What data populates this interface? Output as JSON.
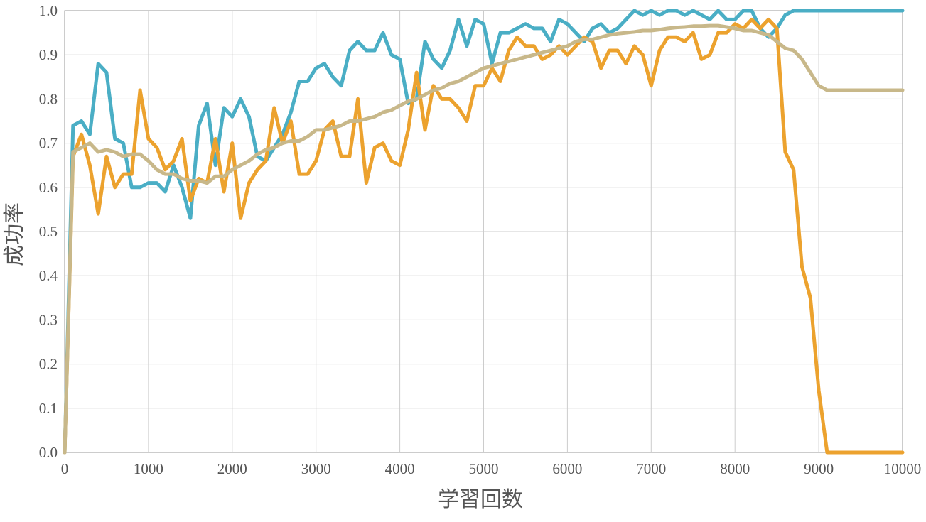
{
  "chart_data": {
    "type": "line",
    "title": "",
    "xlabel": "学習回数",
    "ylabel": "成功率",
    "xlim": [
      0,
      10000
    ],
    "ylim": [
      0,
      1
    ],
    "grid": true,
    "legend": "none",
    "x_ticks": [
      "0",
      "1000",
      "2000",
      "3000",
      "4000",
      "5000",
      "6000",
      "7000",
      "8000",
      "9000",
      "10000"
    ],
    "y_ticks": [
      "0.0",
      "0.1",
      "0.2",
      "0.3",
      "0.4",
      "0.5",
      "0.6",
      "0.7",
      "0.8",
      "0.9",
      "1.0"
    ],
    "x": [
      0,
      100,
      200,
      300,
      400,
      500,
      600,
      700,
      800,
      900,
      1000,
      1100,
      1200,
      1300,
      1400,
      1500,
      1600,
      1700,
      1800,
      1900,
      2000,
      2100,
      2200,
      2300,
      2400,
      2500,
      2600,
      2700,
      2800,
      2900,
      3000,
      3100,
      3200,
      3300,
      3400,
      3500,
      3600,
      3700,
      3800,
      3900,
      4000,
      4100,
      4200,
      4300,
      4400,
      4500,
      4600,
      4700,
      4800,
      4900,
      5000,
      5100,
      5200,
      5300,
      5400,
      5500,
      5600,
      5700,
      5800,
      5900,
      6000,
      6100,
      6200,
      6300,
      6400,
      6500,
      6600,
      6700,
      6800,
      6900,
      7000,
      7100,
      7200,
      7300,
      7400,
      7500,
      7600,
      7700,
      7800,
      7900,
      8000,
      8100,
      8200,
      8300,
      8400,
      8500,
      8600,
      8700,
      8800,
      8900,
      9000,
      9100,
      9200,
      9300,
      9400,
      9500,
      9600,
      9700,
      9800,
      9900,
      10000
    ],
    "series": [
      {
        "color": "#4aaec5",
        "values": [
          0,
          0.74,
          0.75,
          0.72,
          0.88,
          0.86,
          0.71,
          0.7,
          0.6,
          0.6,
          0.61,
          0.61,
          0.59,
          0.65,
          0.6,
          0.53,
          0.74,
          0.79,
          0.65,
          0.78,
          0.76,
          0.8,
          0.76,
          0.67,
          0.66,
          0.69,
          0.72,
          0.77,
          0.84,
          0.84,
          0.87,
          0.88,
          0.85,
          0.83,
          0.91,
          0.93,
          0.91,
          0.91,
          0.95,
          0.9,
          0.89,
          0.79,
          0.8,
          0.93,
          0.89,
          0.87,
          0.91,
          0.98,
          0.92,
          0.98,
          0.97,
          0.88,
          0.95,
          0.95,
          0.96,
          0.97,
          0.96,
          0.96,
          0.93,
          0.98,
          0.97,
          0.95,
          0.93,
          0.96,
          0.97,
          0.95,
          0.96,
          0.98,
          1.0,
          0.99,
          1.0,
          0.99,
          1.0,
          1.0,
          0.99,
          1.0,
          0.99,
          0.98,
          1.0,
          0.98,
          0.98,
          1.0,
          1.0,
          0.96,
          0.94,
          0.96,
          0.99,
          1.0,
          1.0,
          1.0,
          1.0,
          1.0,
          1.0,
          1.0,
          1.0,
          1.0,
          1.0,
          1.0,
          1.0,
          1.0,
          1.0
        ]
      },
      {
        "color": "#eca22e",
        "values": [
          0,
          0.67,
          0.72,
          0.65,
          0.54,
          0.67,
          0.6,
          0.63,
          0.63,
          0.82,
          0.71,
          0.69,
          0.64,
          0.66,
          0.71,
          0.57,
          0.62,
          0.61,
          0.71,
          0.59,
          0.7,
          0.53,
          0.61,
          0.64,
          0.66,
          0.78,
          0.7,
          0.75,
          0.63,
          0.63,
          0.66,
          0.73,
          0.75,
          0.67,
          0.67,
          0.8,
          0.61,
          0.69,
          0.7,
          0.66,
          0.65,
          0.73,
          0.86,
          0.73,
          0.83,
          0.8,
          0.8,
          0.78,
          0.75,
          0.83,
          0.83,
          0.87,
          0.84,
          0.91,
          0.94,
          0.92,
          0.92,
          0.89,
          0.9,
          0.92,
          0.9,
          0.92,
          0.94,
          0.93,
          0.87,
          0.91,
          0.91,
          0.88,
          0.92,
          0.9,
          0.83,
          0.91,
          0.94,
          0.94,
          0.93,
          0.95,
          0.89,
          0.9,
          0.95,
          0.95,
          0.97,
          0.96,
          0.98,
          0.96,
          0.98,
          0.96,
          0.68,
          0.64,
          0.42,
          0.35,
          0.14,
          0.0,
          0.0,
          0.0,
          0.0,
          0.0,
          0.0,
          0.0,
          0.0,
          0.0,
          0.0
        ]
      },
      {
        "color": "#c8b88a",
        "values": [
          0,
          0.68,
          0.69,
          0.7,
          0.68,
          0.685,
          0.68,
          0.67,
          0.675,
          0.675,
          0.66,
          0.64,
          0.63,
          0.63,
          0.62,
          0.615,
          0.615,
          0.61,
          0.625,
          0.625,
          0.64,
          0.65,
          0.66,
          0.675,
          0.685,
          0.69,
          0.7,
          0.705,
          0.705,
          0.715,
          0.73,
          0.73,
          0.735,
          0.74,
          0.75,
          0.75,
          0.755,
          0.76,
          0.77,
          0.775,
          0.785,
          0.795,
          0.8,
          0.81,
          0.82,
          0.825,
          0.835,
          0.84,
          0.85,
          0.86,
          0.87,
          0.875,
          0.88,
          0.885,
          0.89,
          0.895,
          0.9,
          0.905,
          0.91,
          0.915,
          0.92,
          0.93,
          0.935,
          0.935,
          0.94,
          0.945,
          0.948,
          0.95,
          0.952,
          0.955,
          0.955,
          0.957,
          0.96,
          0.962,
          0.963,
          0.965,
          0.965,
          0.966,
          0.966,
          0.963,
          0.96,
          0.955,
          0.955,
          0.95,
          0.945,
          0.93,
          0.915,
          0.91,
          0.89,
          0.86,
          0.83,
          0.82,
          0.82,
          0.82,
          0.82,
          0.82,
          0.82,
          0.82,
          0.82,
          0.82,
          0.82
        ]
      }
    ]
  }
}
